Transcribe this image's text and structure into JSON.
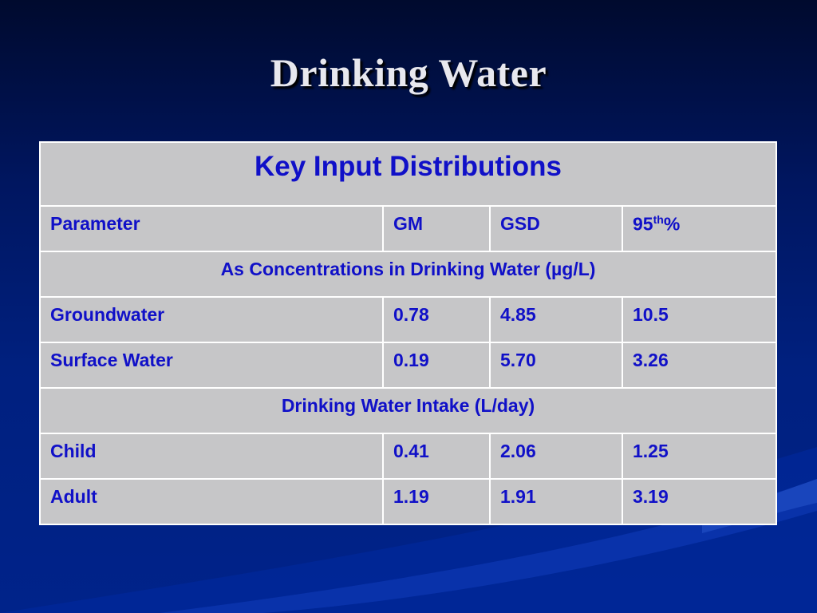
{
  "slide": {
    "title": "Drinking Water"
  },
  "table": {
    "caption": "Key Input Distributions",
    "headers": {
      "parameter": "Parameter",
      "gm": "GM",
      "gsd": "GSD",
      "p95_base": "95",
      "p95_sup": "th",
      "p95_tail": "%"
    },
    "section1": "As Concentrations in Drinking Water (µg/L)",
    "rows1": [
      {
        "parameter": "Groundwater",
        "gm": "0.78",
        "gsd": "4.85",
        "p95": "10.5"
      },
      {
        "parameter": "Surface Water",
        "gm": "0.19",
        "gsd": "5.70",
        "p95": "3.26"
      }
    ],
    "section2": "Drinking Water Intake (L/day)",
    "rows2": [
      {
        "parameter": "Child",
        "gm": "0.41",
        "gsd": "2.06",
        "p95": "1.25"
      },
      {
        "parameter": "Adult",
        "gm": "1.19",
        "gsd": "1.91",
        "p95": "3.19"
      }
    ]
  }
}
